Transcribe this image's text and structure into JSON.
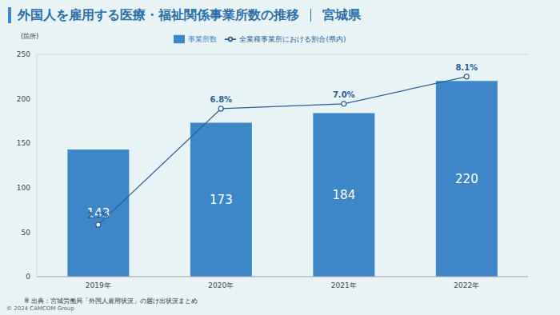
{
  "chart_data": {
    "type": "bar",
    "title": "外国人を雇用する医療・福祉関係事業所数の推移",
    "subtitle": "宮城県",
    "y_label": "(箇所)",
    "source": "※ 出典：宮城労働局「外国人雇用状況」の届け出状況まとめ",
    "copyright": "© 2024 CAMCOM Group",
    "categories": [
      "2019年",
      "2020年",
      "2021年",
      "2022年"
    ],
    "series": [
      {
        "name": "事業所数",
        "type": "bar",
        "color": "#3d87c9",
        "values": [
          143,
          173,
          184,
          220
        ]
      },
      {
        "name": "全業種事業所における割合(県内)",
        "type": "line",
        "axis": "y2",
        "color": "#2b5f93",
        "marker": "circle",
        "values": [
          2.1,
          6.8,
          7.0,
          8.1
        ],
        "value_labels": [
          "2.1%",
          "6.8%",
          "7.0%",
          "8.1%"
        ]
      }
    ],
    "ylim": [
      0,
      250
    ],
    "yticks": [
      0,
      50,
      100,
      150,
      200,
      250
    ],
    "y2lim": [
      0,
      9
    ],
    "grid": true,
    "legend": "top",
    "data_labels": true
  }
}
